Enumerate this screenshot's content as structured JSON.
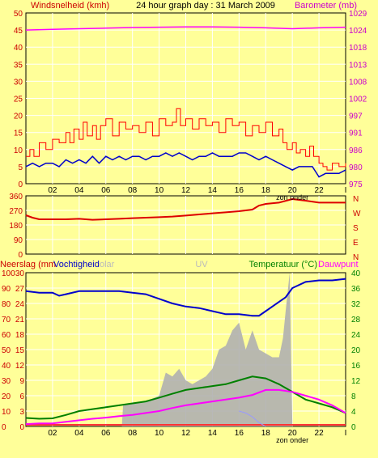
{
  "title": "24 hour graph day : 31 March 2009",
  "colors": {
    "background": "#ffff99",
    "plot_bg": "#ffff99",
    "grid": "#ffffff",
    "wind_gust": "#ff0000",
    "wind_avg": "#0000cc",
    "barometer": "#ff00ff",
    "direction": "#dd0000",
    "humidity": "#0000cc",
    "temperature": "#008000",
    "dewpoint": "#ff00ff",
    "rain": "#b0b0b0",
    "solar": "#b0b0b0",
    "uv": "#9999ff",
    "left_axis": "#cc0000",
    "right_axis_top": "#cc00cc",
    "right_axis_bottom": "#008000"
  },
  "x_ticks": [
    "02",
    "04",
    "06",
    "08",
    "10",
    "12",
    "14",
    "16",
    "18",
    "20",
    "22",
    "I"
  ],
  "x_sunset_label": "zon onder",
  "panels": {
    "wind": {
      "left_label": "Windsnelheid (kmh)",
      "right_label": "Barometer (mb)",
      "left_ticks": [
        "0",
        "5",
        "10",
        "15",
        "20",
        "25",
        "30",
        "35",
        "40",
        "45",
        "50"
      ],
      "right_ticks": [
        "975",
        "980",
        "986",
        "991",
        "997",
        "1002",
        "1008",
        "1013",
        "1018",
        "1024",
        "1029"
      ]
    },
    "direction": {
      "left_ticks": [
        "0",
        "90",
        "180",
        "270",
        "360"
      ],
      "right_ticks": [
        "N",
        "E",
        "S",
        "W",
        "N"
      ]
    },
    "weather": {
      "labels": [
        "Neerslag (mm",
        "Vochtigheid",
        "olar",
        "UV",
        "Temperatuur (°C)",
        "Dauwpunt"
      ],
      "left_ticks_outer": [
        "0",
        "10",
        "20",
        "30",
        "40",
        "50",
        "60",
        "70",
        "80",
        "90",
        "100"
      ],
      "left_ticks_inner": [
        "0",
        "3",
        "6",
        "9",
        "12",
        "15",
        "18",
        "21",
        "24",
        "27",
        "30"
      ],
      "right_ticks": [
        "0",
        "4",
        "8",
        "12",
        "16",
        "20",
        "24",
        "28",
        "32",
        "36",
        "40"
      ]
    }
  },
  "chart_data": [
    {
      "type": "line",
      "title": "24 hour graph day : 31 March 2009",
      "xlabel": "",
      "ylabel": "Windsnelheid (kmh)",
      "y2label": "Barometer (mb)",
      "xlim": [
        0,
        24
      ],
      "ylim": [
        0,
        50
      ],
      "y2lim": [
        975,
        1029
      ],
      "grid": true,
      "series": [
        {
          "name": "Windsnelheid (kmh)",
          "axis": "left",
          "role": "gust",
          "x": [
            0,
            0.3,
            0.6,
            1,
            1.5,
            2,
            2.5,
            3,
            3.3,
            3.6,
            4,
            4.3,
            4.6,
            5,
            5.3,
            5.6,
            6,
            6.5,
            7,
            7.5,
            8,
            8.5,
            9,
            9.5,
            10,
            10.5,
            11,
            11.3,
            11.6,
            12,
            12.5,
            13,
            13.5,
            14,
            14.5,
            15,
            15.5,
            16,
            16.5,
            17,
            17.5,
            18,
            18.5,
            19,
            19.3,
            19.6,
            20,
            20.3,
            20.6,
            21,
            21.3,
            21.6,
            22,
            22.3,
            22.6,
            23,
            23.5,
            24
          ],
          "y": [
            8,
            10,
            8,
            12,
            10,
            13,
            12,
            15,
            12,
            16,
            13,
            18,
            14,
            17,
            13,
            17,
            19,
            14,
            18,
            16,
            17,
            15,
            18,
            14,
            19,
            17,
            18,
            22,
            17,
            19,
            16,
            19,
            17,
            18,
            15,
            19,
            17,
            18,
            14,
            17,
            15,
            18,
            14,
            16,
            12,
            10,
            12,
            9,
            10,
            8,
            11,
            8,
            6,
            5,
            4,
            6,
            5,
            6
          ]
        },
        {
          "name": "Windsnelheid avg",
          "axis": "left",
          "role": "average",
          "x": [
            0,
            0.5,
            1,
            1.5,
            2,
            2.5,
            3,
            3.5,
            4,
            4.5,
            5,
            5.5,
            6,
            6.5,
            7,
            7.5,
            8,
            8.5,
            9,
            9.5,
            10,
            10.5,
            11,
            11.5,
            12,
            12.5,
            13,
            13.5,
            14,
            14.5,
            15,
            15.5,
            16,
            16.5,
            17,
            17.5,
            18,
            18.5,
            19,
            19.5,
            20,
            20.5,
            21,
            21.5,
            22,
            22.5,
            23,
            23.5,
            24
          ],
          "y": [
            5,
            6,
            5,
            6,
            6,
            5,
            7,
            6,
            7,
            6,
            8,
            6,
            8,
            7,
            8,
            7,
            8,
            8,
            7,
            8,
            8,
            9,
            8,
            9,
            8,
            7,
            8,
            8,
            9,
            8,
            8,
            8,
            9,
            9,
            8,
            7,
            8,
            7,
            6,
            5,
            4,
            5,
            5,
            5,
            2,
            3,
            3,
            3,
            4
          ]
        },
        {
          "name": "Barometer (mb)",
          "axis": "right",
          "x": [
            0,
            2,
            4,
            6,
            8,
            10,
            12,
            14,
            16,
            18,
            20,
            22,
            24
          ],
          "y": [
            1023.6,
            1023.8,
            1024.0,
            1024.2,
            1024.4,
            1024.5,
            1024.6,
            1024.6,
            1024.5,
            1024.3,
            1024.0,
            1024.3,
            1024.5
          ]
        }
      ]
    },
    {
      "type": "line",
      "ylabel": "",
      "xlim": [
        0,
        24
      ],
      "ylim": [
        0,
        360
      ],
      "grid": true,
      "series": [
        {
          "name": "Windrichting",
          "x": [
            0,
            0.5,
            1,
            2,
            3,
            4,
            5,
            6,
            7,
            8,
            9,
            10,
            11,
            12,
            13,
            14,
            15,
            16,
            17,
            17.5,
            18,
            19,
            20,
            21,
            22,
            23,
            24
          ],
          "y": [
            240,
            225,
            215,
            215,
            215,
            218,
            212,
            215,
            218,
            222,
            225,
            228,
            232,
            238,
            245,
            252,
            258,
            265,
            275,
            300,
            310,
            318,
            340,
            330,
            318,
            318,
            318
          ]
        }
      ]
    },
    {
      "type": "line",
      "xlim": [
        0,
        24
      ],
      "ylim": [
        0,
        100
      ],
      "y2lim": [
        0,
        40
      ],
      "grid": true,
      "series": [
        {
          "name": "Vochtigheid",
          "axis": "left",
          "x": [
            0,
            1,
            2,
            2.5,
            3,
            4,
            5,
            6,
            7,
            8,
            9,
            10,
            11,
            12,
            13,
            14,
            15,
            16,
            17,
            17.5,
            18,
            19,
            19.5,
            20,
            21,
            22,
            23,
            24
          ],
          "y": [
            88,
            87,
            87,
            85,
            86,
            88,
            88,
            88,
            88,
            87,
            86,
            83,
            80,
            78,
            77,
            75,
            73,
            73,
            72,
            72,
            75,
            81,
            84,
            90,
            94,
            95,
            95,
            96
          ]
        },
        {
          "name": "Temperatuur (°C)",
          "axis": "right",
          "x": [
            0,
            1,
            2,
            3,
            4,
            5,
            6,
            7,
            8,
            9,
            10,
            11,
            12,
            13,
            14,
            15,
            16,
            17,
            18,
            19,
            20,
            21,
            22,
            23,
            24
          ],
          "y": [
            2.2,
            2.0,
            2.1,
            3,
            4,
            4.5,
            5,
            5.5,
            6,
            6.5,
            7.5,
            8.5,
            9.5,
            10,
            10.5,
            11,
            12,
            13,
            12.5,
            11,
            9,
            7,
            6,
            5,
            3.5
          ]
        },
        {
          "name": "Dauwpunt",
          "axis": "right",
          "x": [
            0,
            1,
            2,
            3,
            4,
            5,
            6,
            7,
            8,
            9,
            10,
            11,
            12,
            13,
            14,
            15,
            16,
            17,
            18,
            19,
            20,
            21,
            22,
            23,
            24
          ],
          "y": [
            0.6,
            0.8,
            0.8,
            1.2,
            1.6,
            2,
            2.3,
            2.7,
            3,
            3.5,
            4,
            4.8,
            5.5,
            6,
            6.5,
            7,
            7.5,
            8.2,
            9.5,
            9.5,
            9,
            8,
            7,
            5.5,
            3.5
          ]
        },
        {
          "name": "Solar",
          "axis": "right",
          "role": "area",
          "x": [
            0,
            7.2,
            7.3,
            8,
            9,
            10,
            10.5,
            11,
            11.5,
            12,
            12.5,
            13,
            13.5,
            14,
            14.5,
            15,
            15.5,
            16,
            16.5,
            17,
            17.5,
            18,
            18.5,
            19,
            19.3,
            19.5,
            19.8,
            20,
            24
          ],
          "y": [
            0,
            0,
            5.5,
            6,
            6.5,
            8,
            14,
            13,
            15,
            12,
            11,
            12,
            13,
            15,
            20,
            21,
            25,
            27,
            20,
            25,
            20,
            19,
            18,
            18,
            23,
            30,
            40,
            0,
            0
          ]
        },
        {
          "name": "UV",
          "axis": "right",
          "role": "uv",
          "x": [
            16,
            16.5,
            17,
            17.5,
            18
          ],
          "y": [
            4,
            3.5,
            2.5,
            1,
            0
          ]
        }
      ]
    }
  ]
}
